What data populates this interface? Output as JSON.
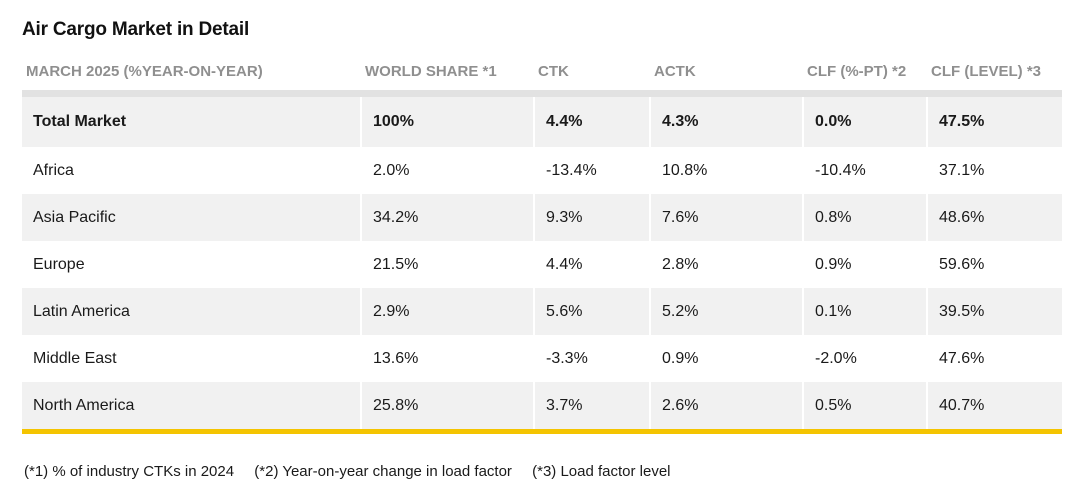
{
  "title": "Air Cargo Market in Detail",
  "table": {
    "headers": [
      "MARCH 2025 (%YEAR-ON-YEAR)",
      "WORLD SHARE *1",
      "CTK",
      "ACTK",
      "CLF (%-PT) *2",
      "CLF (LEVEL) *3"
    ],
    "rows": [
      [
        "Total Market",
        "100%",
        "4.4%",
        "4.3%",
        "0.0%",
        "47.5%"
      ],
      [
        "Africa",
        "2.0%",
        "-13.4%",
        "10.8%",
        "-10.4%",
        "37.1%"
      ],
      [
        "Asia Pacific",
        "34.2%",
        "9.3%",
        "7.6%",
        "0.8%",
        "48.6%"
      ],
      [
        "Europe",
        "21.5%",
        "4.4%",
        "2.8%",
        "0.9%",
        "59.6%"
      ],
      [
        "Latin America",
        "2.9%",
        "5.6%",
        "5.2%",
        "0.1%",
        "39.5%"
      ],
      [
        "Middle East",
        "13.6%",
        "-3.3%",
        "0.9%",
        "-2.0%",
        "47.6%"
      ],
      [
        "North America",
        "25.8%",
        "3.7%",
        "2.6%",
        "0.5%",
        "40.7%"
      ]
    ]
  },
  "footnotes": [
    "(*1) % of industry CTKs in 2024",
    "(*2) Year-on-year change in load factor",
    "(*3) Load factor level"
  ],
  "colors": {
    "accent_rule": "#f4c400",
    "row_shade": "#f1f1f1",
    "header_text": "#8f8f8f"
  }
}
